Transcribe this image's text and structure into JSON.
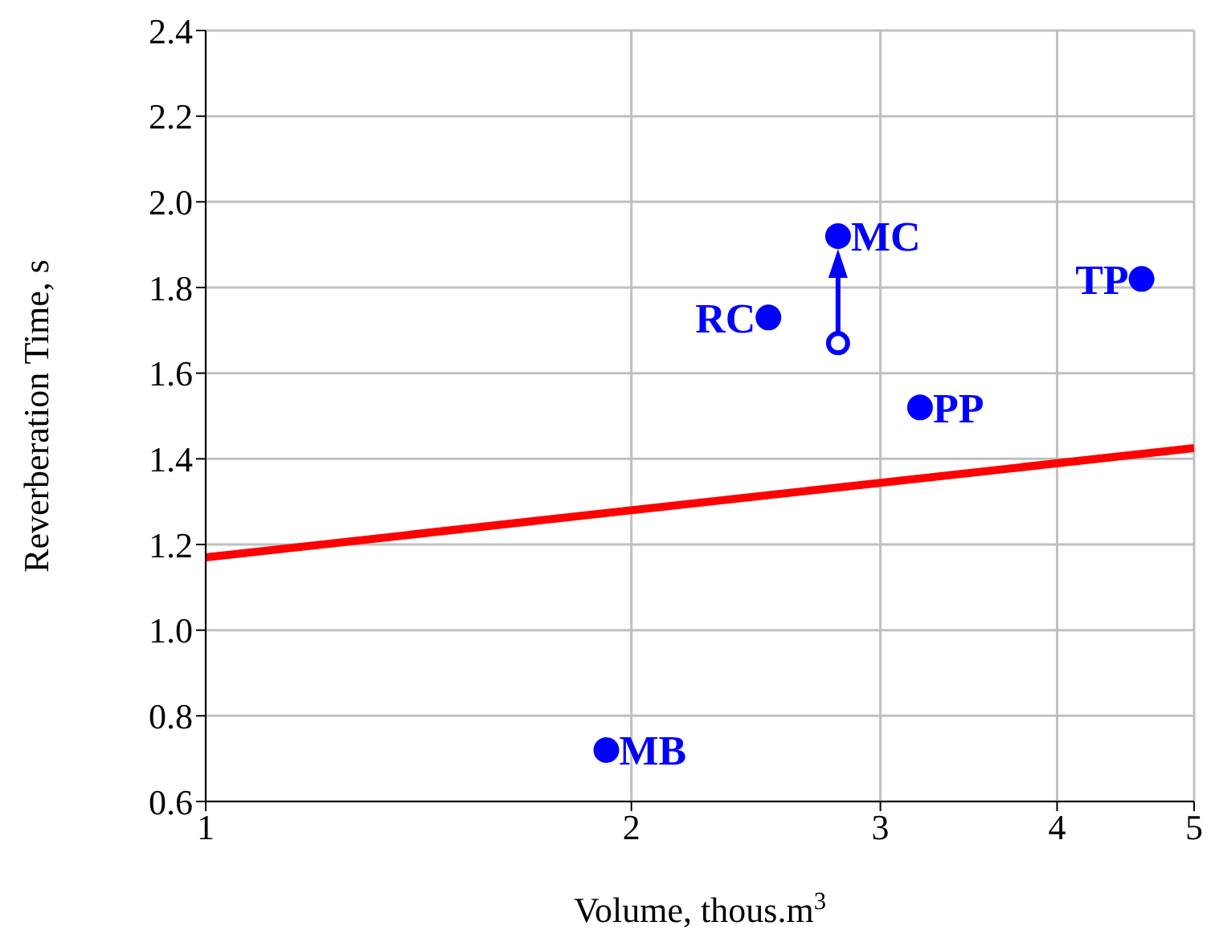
{
  "chart_data": {
    "type": "scatter",
    "xlabel": "Volume, thous.m$^{3}$",
    "ylabel": "Reverberation Time, s",
    "log": "x",
    "grid": true,
    "marker": "circle",
    "xlim": [
      1,
      5
    ],
    "xticks": [
      1,
      2,
      3,
      4,
      5
    ],
    "ylim": [
      0.6,
      2.4
    ],
    "yticks": [
      {
        "value": 0.6,
        "label": "0.6"
      },
      {
        "value": 0.8,
        "label": "0.8"
      },
      {
        "value": 1.0,
        "label": "1.0"
      },
      {
        "value": 1.2,
        "label": "1.2"
      },
      {
        "value": 1.4,
        "label": "1.4"
      },
      {
        "value": 1.6,
        "label": "1.6"
      },
      {
        "value": 1.8,
        "label": "1.8"
      },
      {
        "value": 2.0,
        "label": "2.0"
      },
      {
        "value": 2.2,
        "label": "2.2"
      },
      {
        "value": 2.4,
        "label": "2.4"
      }
    ],
    "series": [
      {
        "color": "#0000ff",
        "x": [
          1.92,
          2.5,
          2.8,
          3.2,
          4.59
        ],
        "values": [
          0.72,
          1.73,
          1.92,
          1.52,
          1.82
        ]
      },
      {
        "type": "scatter",
        "color": "#0000ff",
        "x": [
          2.8
        ],
        "values": [
          1.67
        ]
      },
      {
        "type": "line",
        "color": "#ff0000",
        "marker": "none",
        "x": [
          1,
          5
        ],
        "values": [
          1.17,
          1.425
        ]
      }
    ],
    "annotations": [
      {
        "text": "MB",
        "x": 1.92,
        "y": 0.72
      },
      {
        "text": "RC",
        "x": 2.5,
        "y": 1.73
      },
      {
        "text": "MC",
        "x": 2.8,
        "y": 1.92
      },
      {
        "text": "PP",
        "x": 3.2,
        "y": 1.52
      },
      {
        "text": "TP",
        "x": 4.59,
        "y": 1.82
      }
    ]
  }
}
